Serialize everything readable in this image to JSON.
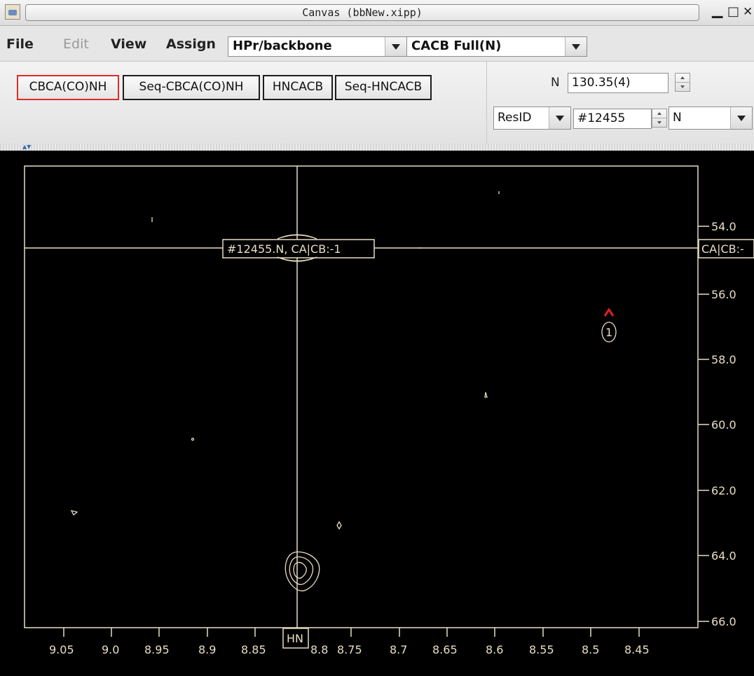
{
  "window": {
    "title": "Canvas (bbNew.xipp)",
    "minimize_glyph": "▁",
    "maximize_glyph": "□",
    "close_glyph": "✕"
  },
  "menu": {
    "file": "File",
    "edit": "Edit",
    "view": "View",
    "assign": "Assign",
    "project_combo": "HPr/backbone",
    "mode_combo": "CACB Full(N)"
  },
  "toolbar": {
    "spectra": [
      "CBCA(CO)NH",
      "Seq-CBCA(CO)NH",
      "HNCACB",
      "Seq-HNCACB"
    ],
    "active_spectrum": "CBCA(CO)NH",
    "n_label": "N",
    "n_value": "130.35(4)",
    "resid_combo": "ResID",
    "resid_value": "#12455",
    "atom_combo": "N"
  },
  "plot": {
    "x_ticks": [
      "9.05",
      "9.0",
      "8.95",
      "8.9",
      "8.85",
      "8.8",
      "8.75",
      "8.7",
      "8.65",
      "8.6",
      "8.55",
      "8.5",
      "8.45"
    ],
    "y_ticks": [
      "54.0",
      "56.0",
      "58.0",
      "60.0",
      "62.0",
      "64.0",
      "66.0"
    ],
    "crosshair_label": "#12455.N, CA|CB:-1",
    "right_axis_label": "CA|CB:-",
    "x_axis_label": "HN",
    "peak_marker_label": "1",
    "colors": {
      "contour": "#e8ddc4",
      "background": "#000000",
      "marker": "#e02020"
    }
  }
}
